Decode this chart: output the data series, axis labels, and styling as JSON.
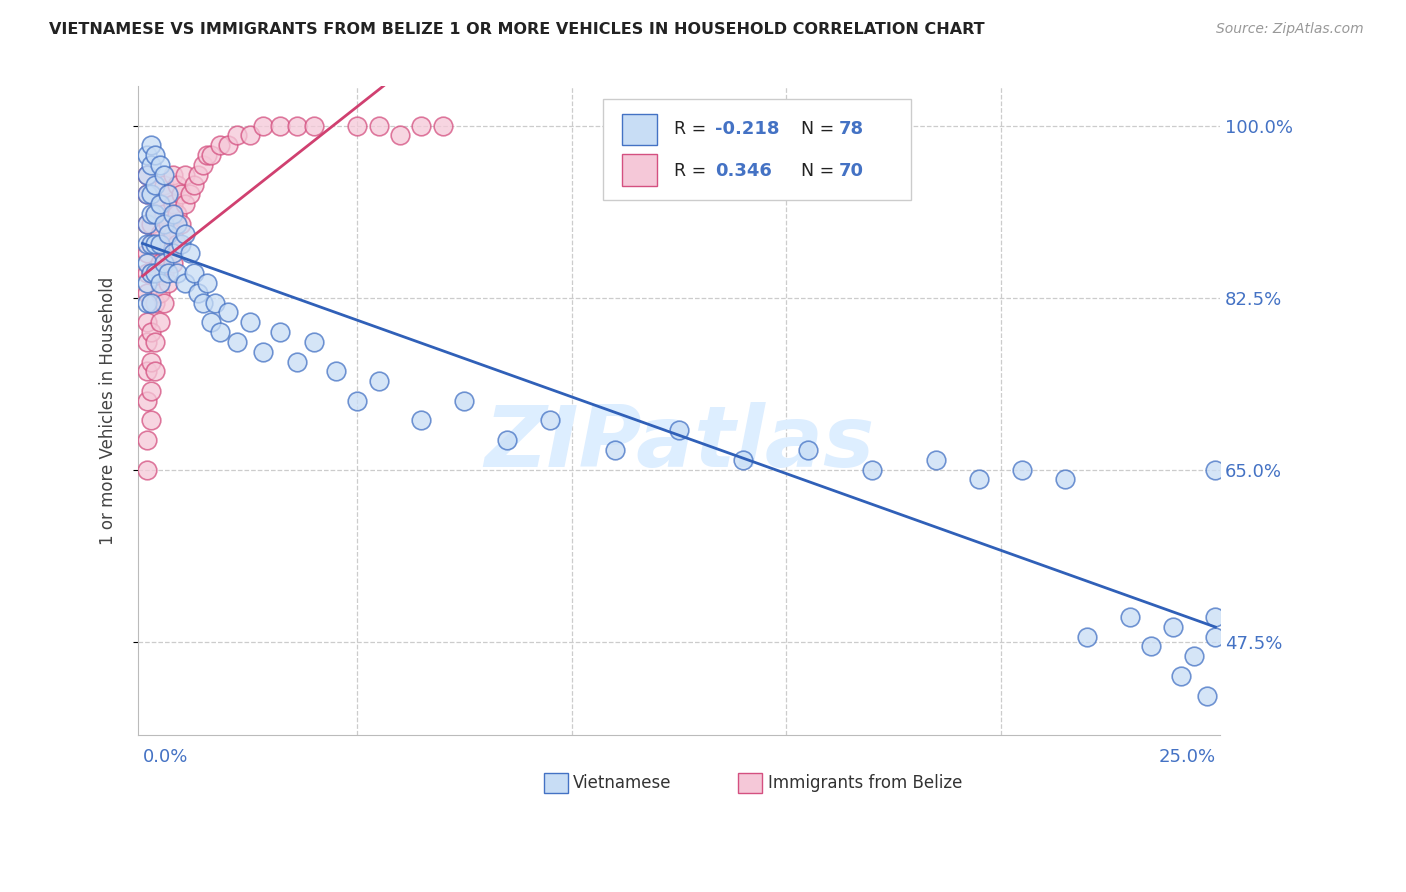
{
  "title": "VIETNAMESE VS IMMIGRANTS FROM BELIZE 1 OR MORE VEHICLES IN HOUSEHOLD CORRELATION CHART",
  "source": "Source: ZipAtlas.com",
  "ylabel": "1 or more Vehicles in Household",
  "yticks": [
    0.475,
    0.65,
    0.825,
    1.0
  ],
  "ytick_labels": [
    "47.5%",
    "65.0%",
    "82.5%",
    "100.0%"
  ],
  "r_viet": -0.218,
  "n_viet": 78,
  "r_belize": 0.346,
  "n_belize": 70,
  "blue_fill": "#c8ddf5",
  "blue_edge": "#4472c4",
  "pink_fill": "#f5c8d8",
  "pink_edge": "#d45080",
  "line_blue_color": "#3060b8",
  "line_pink_color": "#d04070",
  "grid_color": "#cccccc",
  "background": "#ffffff",
  "title_color": "#222222",
  "source_color": "#999999",
  "watermark_color": "#ddeeff",
  "x_min": 0.0,
  "x_max": 0.25,
  "y_min": 0.38,
  "y_max": 1.04,
  "viet_x": [
    0.001,
    0.001,
    0.001,
    0.001,
    0.001,
    0.001,
    0.001,
    0.001,
    0.002,
    0.002,
    0.002,
    0.002,
    0.002,
    0.002,
    0.002,
    0.003,
    0.003,
    0.003,
    0.003,
    0.003,
    0.004,
    0.004,
    0.004,
    0.004,
    0.005,
    0.005,
    0.005,
    0.006,
    0.006,
    0.006,
    0.007,
    0.007,
    0.008,
    0.008,
    0.009,
    0.01,
    0.01,
    0.011,
    0.012,
    0.013,
    0.014,
    0.015,
    0.016,
    0.017,
    0.018,
    0.02,
    0.022,
    0.025,
    0.028,
    0.032,
    0.036,
    0.04,
    0.045,
    0.05,
    0.055,
    0.065,
    0.075,
    0.085,
    0.095,
    0.11,
    0.125,
    0.14,
    0.155,
    0.17,
    0.185,
    0.195,
    0.205,
    0.215,
    0.22,
    0.23,
    0.235,
    0.24,
    0.242,
    0.245,
    0.248,
    0.25,
    0.25,
    0.25
  ],
  "viet_y": [
    0.97,
    0.95,
    0.93,
    0.9,
    0.88,
    0.86,
    0.84,
    0.82,
    0.98,
    0.96,
    0.93,
    0.91,
    0.88,
    0.85,
    0.82,
    0.97,
    0.94,
    0.91,
    0.88,
    0.85,
    0.96,
    0.92,
    0.88,
    0.84,
    0.95,
    0.9,
    0.86,
    0.93,
    0.89,
    0.85,
    0.91,
    0.87,
    0.9,
    0.85,
    0.88,
    0.89,
    0.84,
    0.87,
    0.85,
    0.83,
    0.82,
    0.84,
    0.8,
    0.82,
    0.79,
    0.81,
    0.78,
    0.8,
    0.77,
    0.79,
    0.76,
    0.78,
    0.75,
    0.72,
    0.74,
    0.7,
    0.72,
    0.68,
    0.7,
    0.67,
    0.69,
    0.66,
    0.67,
    0.65,
    0.66,
    0.64,
    0.65,
    0.64,
    0.48,
    0.5,
    0.47,
    0.49,
    0.44,
    0.46,
    0.42,
    0.65,
    0.5,
    0.48
  ],
  "belize_x": [
    0.001,
    0.001,
    0.001,
    0.001,
    0.001,
    0.001,
    0.001,
    0.001,
    0.001,
    0.001,
    0.001,
    0.001,
    0.002,
    0.002,
    0.002,
    0.002,
    0.002,
    0.002,
    0.002,
    0.002,
    0.003,
    0.003,
    0.003,
    0.003,
    0.003,
    0.003,
    0.004,
    0.004,
    0.004,
    0.004,
    0.004,
    0.005,
    0.005,
    0.005,
    0.005,
    0.005,
    0.006,
    0.006,
    0.006,
    0.006,
    0.007,
    0.007,
    0.007,
    0.007,
    0.008,
    0.008,
    0.008,
    0.009,
    0.009,
    0.01,
    0.01,
    0.011,
    0.012,
    0.013,
    0.014,
    0.015,
    0.016,
    0.018,
    0.02,
    0.022,
    0.025,
    0.028,
    0.032,
    0.036,
    0.04,
    0.05,
    0.055,
    0.06,
    0.065,
    0.07
  ],
  "belize_y": [
    0.65,
    0.68,
    0.72,
    0.75,
    0.78,
    0.8,
    0.83,
    0.85,
    0.87,
    0.9,
    0.93,
    0.95,
    0.7,
    0.73,
    0.76,
    0.79,
    0.82,
    0.85,
    0.88,
    0.9,
    0.75,
    0.78,
    0.82,
    0.85,
    0.88,
    0.91,
    0.8,
    0.83,
    0.86,
    0.89,
    0.92,
    0.82,
    0.85,
    0.88,
    0.91,
    0.94,
    0.84,
    0.87,
    0.9,
    0.93,
    0.86,
    0.89,
    0.92,
    0.95,
    0.88,
    0.91,
    0.94,
    0.9,
    0.93,
    0.92,
    0.95,
    0.93,
    0.94,
    0.95,
    0.96,
    0.97,
    0.97,
    0.98,
    0.98,
    0.99,
    0.99,
    1.0,
    1.0,
    1.0,
    1.0,
    1.0,
    1.0,
    0.99,
    1.0,
    1.0
  ]
}
